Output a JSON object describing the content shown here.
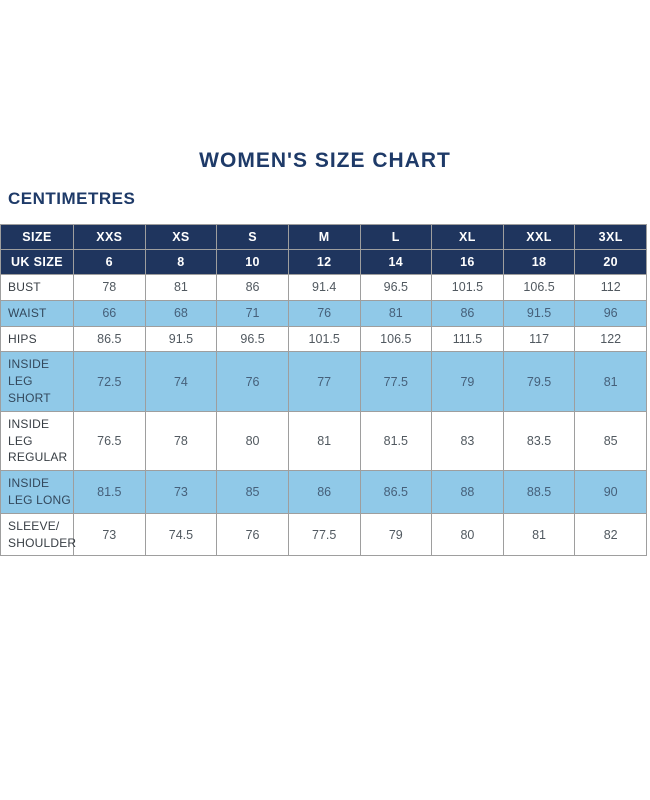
{
  "colors": {
    "navy": "#1f355e",
    "light_blue": "#90c9e8",
    "border_grey": "#9e9e9e",
    "title_navy": "#1e3a68"
  },
  "chart_data": {
    "type": "table",
    "title": "WOMEN'S SIZE CHART",
    "unit": "CENTIMETRES",
    "header_rows": [
      [
        "SIZE",
        "XXS",
        "XS",
        "S",
        "M",
        "L",
        "XL",
        "XXL",
        "3XL"
      ],
      [
        "UK SIZE",
        "6",
        "8",
        "10",
        "12",
        "14",
        "16",
        "18",
        "20"
      ]
    ],
    "rows": [
      {
        "label": "BUST",
        "values": [
          78,
          81,
          86,
          91.4,
          96.5,
          101.5,
          106.5,
          112
        ]
      },
      {
        "label": "WAIST",
        "values": [
          66,
          68,
          71,
          76,
          81,
          86,
          91.5,
          96
        ]
      },
      {
        "label": "HIPS",
        "values": [
          86.5,
          91.5,
          96.5,
          101.5,
          106.5,
          111.5,
          117,
          122
        ]
      },
      {
        "label": "INSIDE LEG SHORT",
        "values": [
          72.5,
          74,
          76,
          77,
          77.5,
          79,
          79.5,
          81
        ]
      },
      {
        "label": "INSIDE LEG REGULAR",
        "values": [
          76.5,
          78,
          80,
          81,
          81.5,
          83,
          83.5,
          85
        ]
      },
      {
        "label": "INSIDE LEG LONG",
        "values": [
          81.5,
          73,
          85,
          86,
          86.5,
          88,
          88.5,
          90
        ]
      },
      {
        "label": "SLEEVE/SHOULDER",
        "values": [
          73,
          74.5,
          76,
          77.5,
          79,
          80,
          81,
          82
        ]
      }
    ]
  }
}
